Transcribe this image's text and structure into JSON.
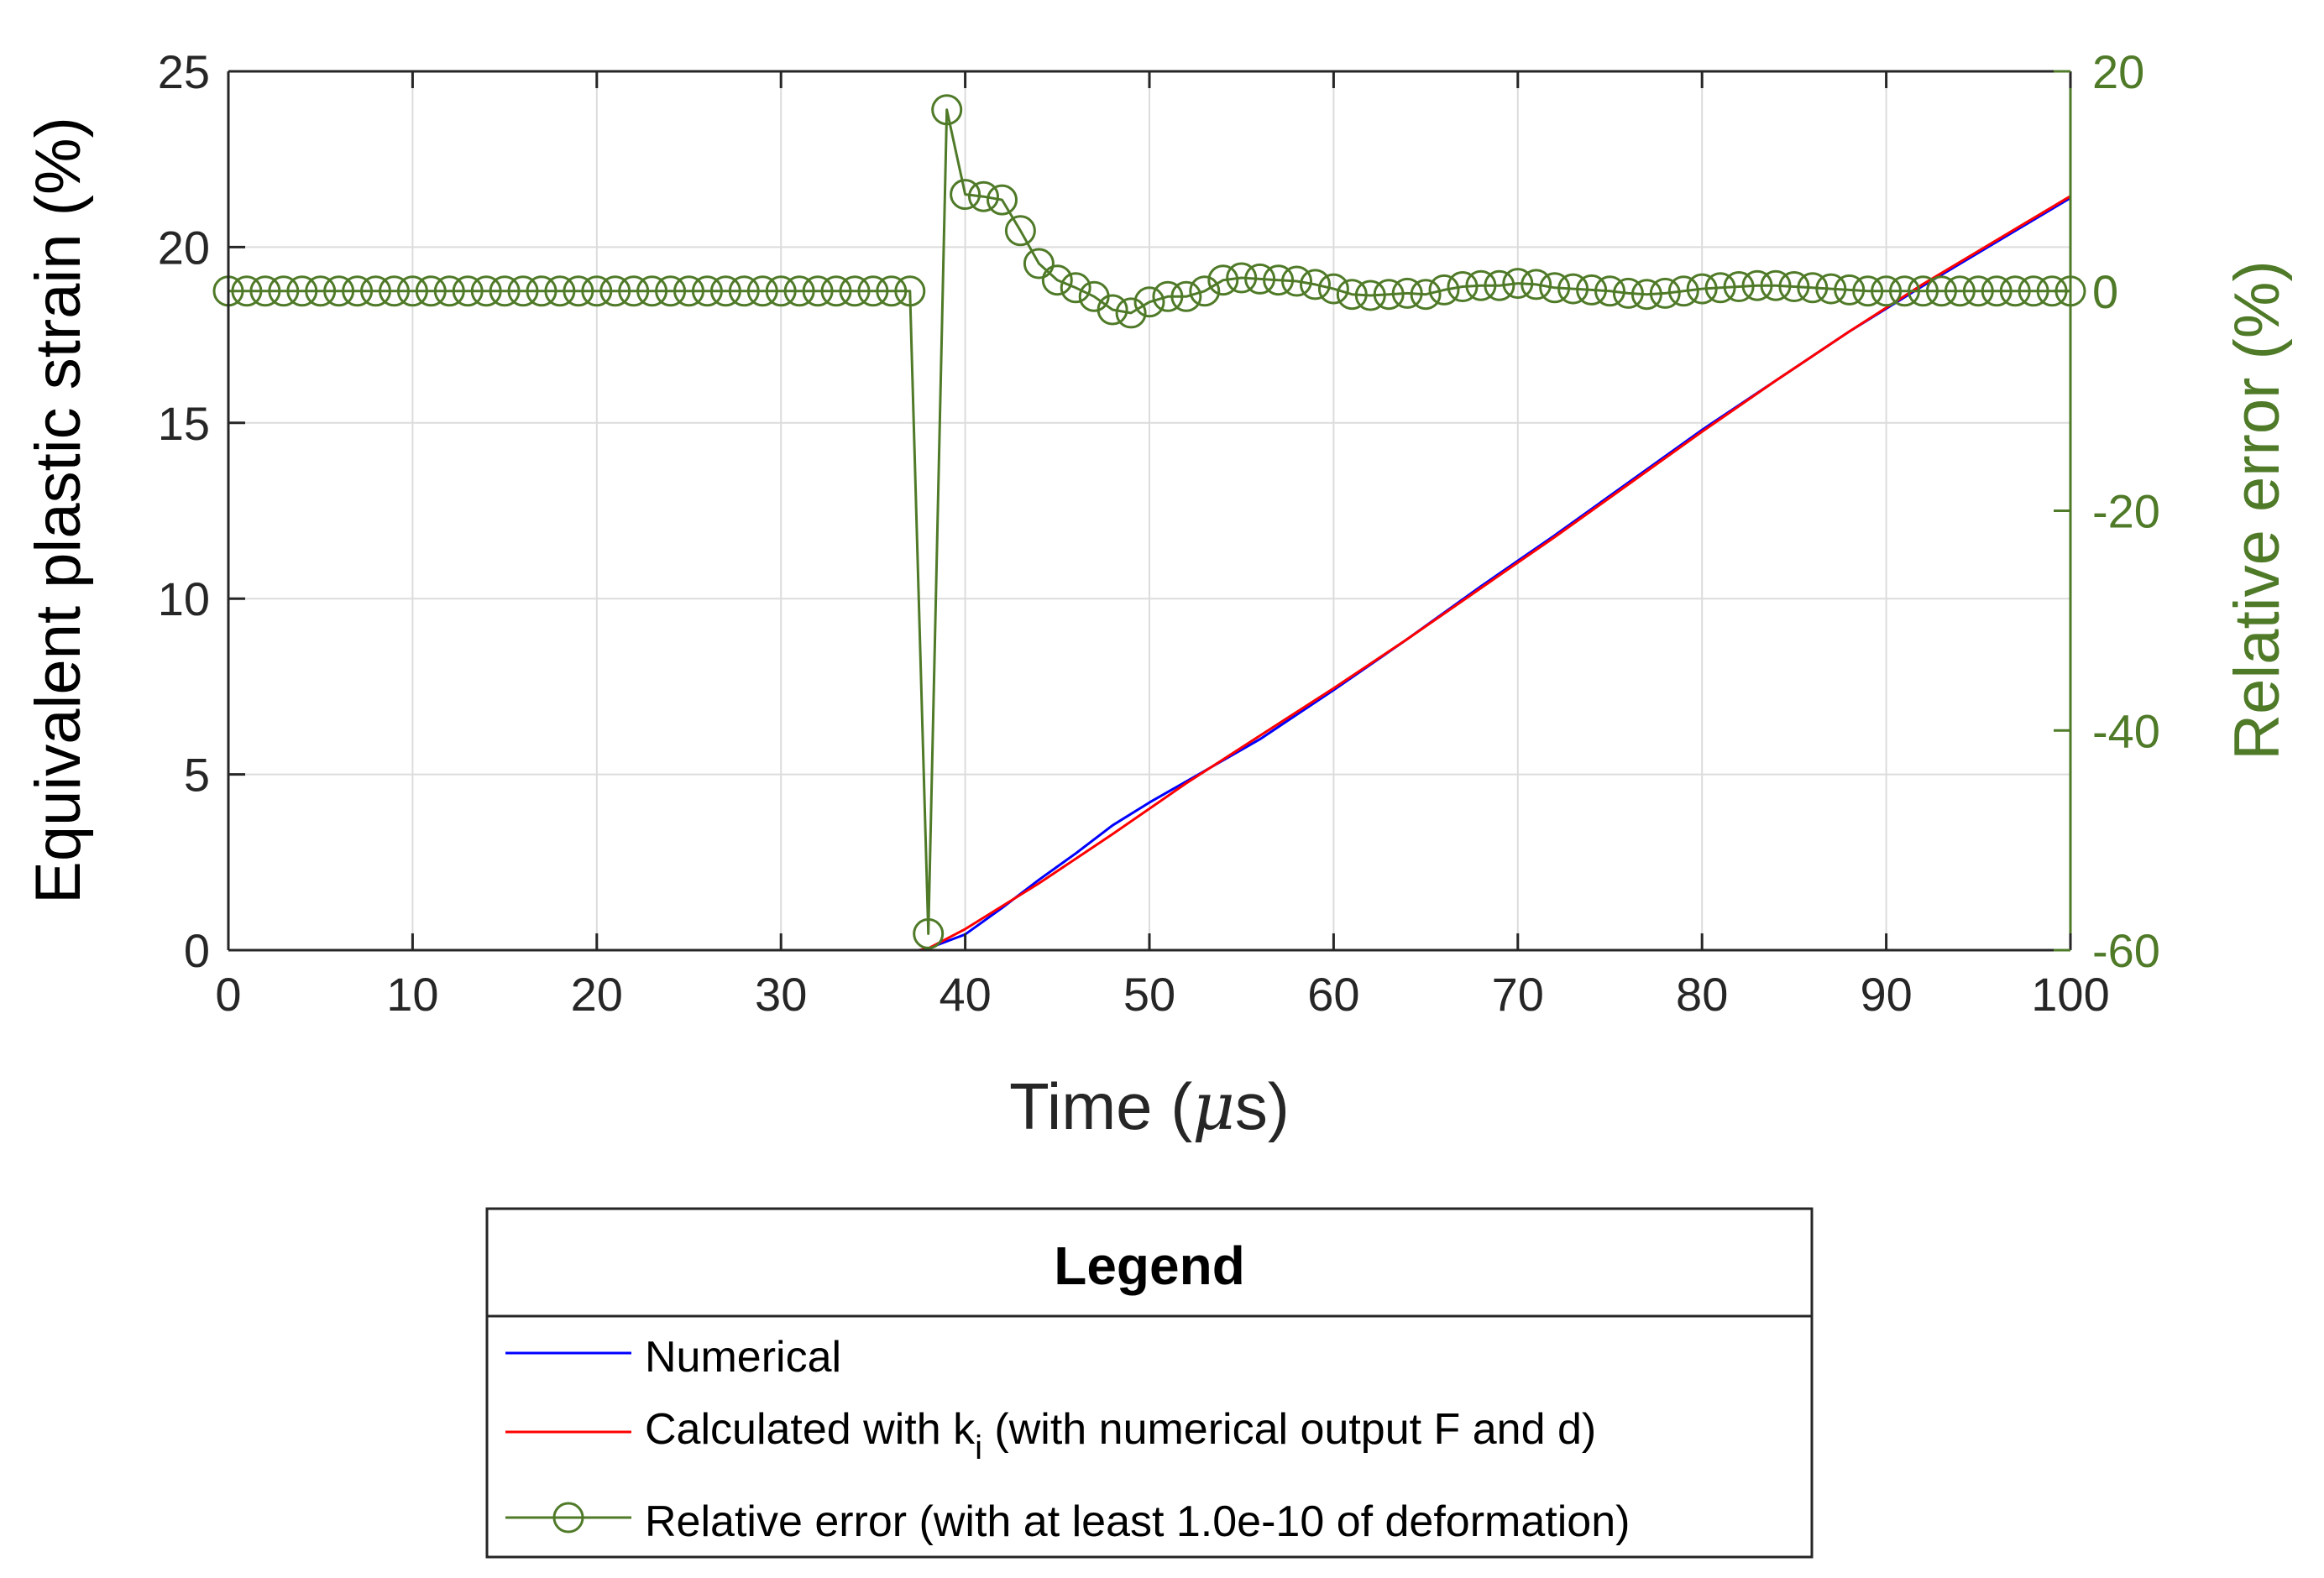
{
  "chart_data": {
    "type": "line",
    "xlabel": "Time (",
    "xlabel_mu": "μ",
    "xlabel_end": "s)",
    "ylabel_left": "Equivalent plastic strain (%)",
    "ylabel_right": "Relative error (%)",
    "xlim": [
      0,
      100
    ],
    "ylim_left": [
      0,
      25
    ],
    "ylim_right": [
      -60,
      20
    ],
    "x_ticks": [
      "0",
      "10",
      "20",
      "30",
      "40",
      "50",
      "60",
      "70",
      "80",
      "90",
      "100"
    ],
    "y_left_ticks": [
      "0",
      "5",
      "10",
      "15",
      "20",
      "25"
    ],
    "y_right_ticks": [
      "-60",
      "-40",
      "-20",
      "0",
      "20"
    ],
    "grid": true,
    "colors": {
      "numerical": "#0000ff",
      "calculated": "#ff0000",
      "relative_error": "#4f7a28",
      "axis": "#262626",
      "grid": "#dcdcdc"
    },
    "legend": {
      "title": "Legend",
      "position": "below",
      "numerical_label": "Numerical",
      "calculated_label_pre": "Calculated with k",
      "calculated_label_sub": "i",
      "calculated_label_post": " (with numerical output F and d)",
      "error_label": "Relative error (with at least 1.0e-10 of deformation)"
    },
    "series": [
      {
        "name": "Numerical",
        "axis": "left",
        "points": [
          [
            0,
            0
          ],
          [
            37.5,
            0
          ],
          [
            38,
            0.05
          ],
          [
            40,
            0.45
          ],
          [
            42,
            1.2
          ],
          [
            44,
            2.0
          ],
          [
            46,
            2.75
          ],
          [
            48,
            3.55
          ],
          [
            50,
            4.2
          ],
          [
            52,
            4.8
          ],
          [
            56,
            6.0
          ],
          [
            60,
            7.4
          ],
          [
            64,
            8.85
          ],
          [
            68,
            10.35
          ],
          [
            72,
            11.8
          ],
          [
            76,
            13.3
          ],
          [
            80,
            14.8
          ],
          [
            84,
            16.2
          ],
          [
            88,
            17.6
          ],
          [
            92,
            18.9
          ],
          [
            96,
            20.15
          ],
          [
            100,
            21.4
          ]
        ]
      },
      {
        "name": "Calculated with k_i (with numerical output F and d)",
        "axis": "left",
        "points": [
          [
            0,
            0
          ],
          [
            37.5,
            0
          ],
          [
            38,
            0.05
          ],
          [
            40,
            0.6
          ],
          [
            44,
            1.9
          ],
          [
            48,
            3.3
          ],
          [
            52,
            4.75
          ],
          [
            56,
            6.1
          ],
          [
            60,
            7.45
          ],
          [
            64,
            8.85
          ],
          [
            68,
            10.3
          ],
          [
            72,
            11.75
          ],
          [
            76,
            13.25
          ],
          [
            80,
            14.75
          ],
          [
            84,
            16.2
          ],
          [
            88,
            17.6
          ],
          [
            92,
            18.95
          ],
          [
            96,
            20.2
          ],
          [
            100,
            21.45
          ]
        ]
      },
      {
        "name": "Relative error (with at least 1.0e-10 of deformation)",
        "axis": "right",
        "markers": true,
        "points": [
          [
            0,
            0
          ],
          [
            1,
            0
          ],
          [
            2,
            0
          ],
          [
            3,
            0
          ],
          [
            4,
            0
          ],
          [
            5,
            0
          ],
          [
            6,
            0
          ],
          [
            7,
            0
          ],
          [
            8,
            0
          ],
          [
            9,
            0
          ],
          [
            10,
            0
          ],
          [
            11,
            0
          ],
          [
            12,
            0
          ],
          [
            13,
            0
          ],
          [
            14,
            0
          ],
          [
            15,
            0
          ],
          [
            16,
            0
          ],
          [
            17,
            0
          ],
          [
            18,
            0
          ],
          [
            19,
            0
          ],
          [
            20,
            0
          ],
          [
            21,
            0
          ],
          [
            22,
            0
          ],
          [
            23,
            0
          ],
          [
            24,
            0
          ],
          [
            25,
            0
          ],
          [
            26,
            0
          ],
          [
            27,
            0
          ],
          [
            28,
            0
          ],
          [
            29,
            0
          ],
          [
            30,
            0
          ],
          [
            31,
            0
          ],
          [
            32,
            0
          ],
          [
            33,
            0
          ],
          [
            34,
            0
          ],
          [
            35,
            0
          ],
          [
            36,
            0
          ],
          [
            37,
            0
          ],
          [
            38,
            -58.5
          ],
          [
            39,
            16.5
          ],
          [
            40,
            8.8
          ],
          [
            41,
            8.6
          ],
          [
            42,
            8.3
          ],
          [
            43,
            5.5
          ],
          [
            44,
            2.5
          ],
          [
            45,
            1.0
          ],
          [
            46,
            0.3
          ],
          [
            47,
            -0.5
          ],
          [
            48,
            -1.7
          ],
          [
            49,
            -2.0
          ],
          [
            50,
            -1.0
          ],
          [
            51,
            -0.5
          ],
          [
            52,
            -0.5
          ],
          [
            53,
            0.0
          ],
          [
            54,
            1.0
          ],
          [
            55,
            1.2
          ],
          [
            56,
            1.1
          ],
          [
            57,
            1.0
          ],
          [
            58,
            0.9
          ],
          [
            59,
            0.6
          ],
          [
            60,
            0.2
          ],
          [
            61,
            -0.3
          ],
          [
            62,
            -0.4
          ],
          [
            63,
            -0.3
          ],
          [
            64,
            -0.2
          ],
          [
            65,
            -0.3
          ],
          [
            66,
            0.1
          ],
          [
            67,
            0.4
          ],
          [
            68,
            0.5
          ],
          [
            69,
            0.5
          ],
          [
            70,
            0.7
          ],
          [
            71,
            0.6
          ],
          [
            72,
            0.3
          ],
          [
            73,
            0.2
          ],
          [
            74,
            0.1
          ],
          [
            75,
            0.0
          ],
          [
            76,
            -0.2
          ],
          [
            77,
            -0.3
          ],
          [
            78,
            -0.2
          ],
          [
            79,
            0.0
          ],
          [
            80,
            0.2
          ],
          [
            81,
            0.3
          ],
          [
            82,
            0.4
          ],
          [
            83,
            0.5
          ],
          [
            84,
            0.5
          ],
          [
            85,
            0.4
          ],
          [
            86,
            0.3
          ],
          [
            87,
            0.2
          ],
          [
            88,
            0.1
          ],
          [
            89,
            0.0
          ],
          [
            90,
            0.0
          ],
          [
            91,
            0.0
          ],
          [
            92,
            0.0
          ],
          [
            93,
            0.0
          ],
          [
            94,
            0.0
          ],
          [
            95,
            0.0
          ],
          [
            96,
            0.0
          ],
          [
            97,
            0.0
          ],
          [
            98,
            0.0
          ],
          [
            99,
            0.0
          ],
          [
            100,
            0.0
          ]
        ]
      }
    ]
  }
}
